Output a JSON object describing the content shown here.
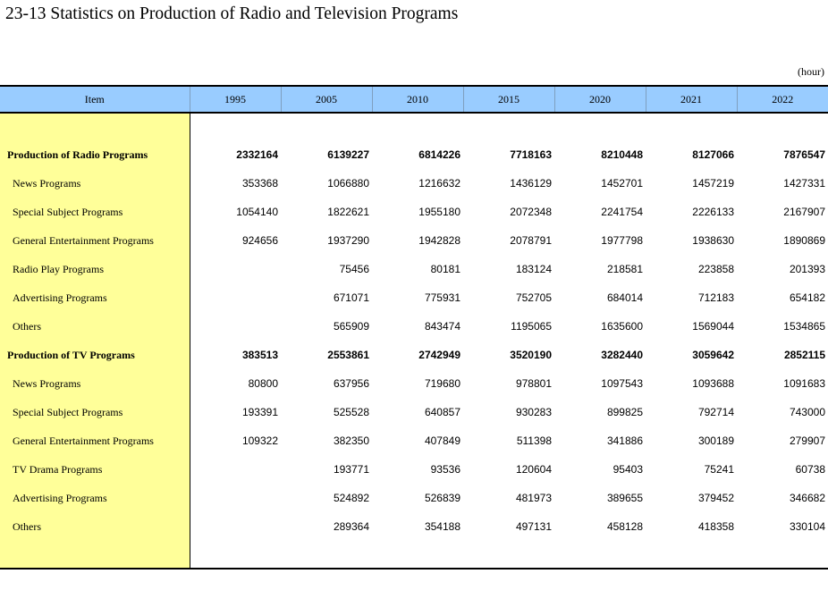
{
  "title": "23-13  Statistics on Production of Radio and Television Programs",
  "unit": "(hour)",
  "table": {
    "headers": [
      "Item",
      "1995",
      "2005",
      "2010",
      "2015",
      "2020",
      "2021",
      "2022"
    ],
    "rows": [
      {
        "item": "Production of Radio Programs",
        "bold": true,
        "values": [
          "2332164",
          "6139227",
          "6814226",
          "7718163",
          "8210448",
          "8127066",
          "7876547"
        ]
      },
      {
        "item": "News Programs",
        "bold": false,
        "values": [
          "353368",
          "1066880",
          "1216632",
          "1436129",
          "1452701",
          "1457219",
          "1427331"
        ]
      },
      {
        "item": "Special Subject Programs",
        "bold": false,
        "values": [
          "1054140",
          "1822621",
          "1955180",
          "2072348",
          "2241754",
          "2226133",
          "2167907"
        ]
      },
      {
        "item": "General Entertainment Programs",
        "bold": false,
        "values": [
          "924656",
          "1937290",
          "1942828",
          "2078791",
          "1977798",
          "1938630",
          "1890869"
        ]
      },
      {
        "item": "Radio Play Programs",
        "bold": false,
        "values": [
          "",
          "75456",
          "80181",
          "183124",
          "218581",
          "223858",
          "201393"
        ]
      },
      {
        "item": "Advertising Programs",
        "bold": false,
        "values": [
          "",
          "671071",
          "775931",
          "752705",
          "684014",
          "712183",
          "654182"
        ]
      },
      {
        "item": "Others",
        "bold": false,
        "values": [
          "",
          "565909",
          "843474",
          "1195065",
          "1635600",
          "1569044",
          "1534865"
        ]
      },
      {
        "item": "Production of TV Programs",
        "bold": true,
        "values": [
          "383513",
          "2553861",
          "2742949",
          "3520190",
          "3282440",
          "3059642",
          "2852115"
        ]
      },
      {
        "item": "News Programs",
        "bold": false,
        "values": [
          "80800",
          "637956",
          "719680",
          "978801",
          "1097543",
          "1093688",
          "1091683"
        ]
      },
      {
        "item": "Special Subject Programs",
        "bold": false,
        "values": [
          "193391",
          "525528",
          "640857",
          "930283",
          "899825",
          "792714",
          "743000"
        ]
      },
      {
        "item": "General Entertainment Programs",
        "bold": false,
        "values": [
          "109322",
          "382350",
          "407849",
          "511398",
          "341886",
          "300189",
          "279907"
        ]
      },
      {
        "item": "TV Drama Programs",
        "bold": false,
        "values": [
          "",
          "193771",
          "93536",
          "120604",
          "95403",
          "75241",
          "60738"
        ]
      },
      {
        "item": "Advertising Programs",
        "bold": false,
        "values": [
          "",
          "524892",
          "526839",
          "481973",
          "389655",
          "379452",
          "346682"
        ]
      },
      {
        "item": "Others",
        "bold": false,
        "values": [
          "",
          "289364",
          "354188",
          "497131",
          "458128",
          "418358",
          "330104"
        ]
      }
    ]
  }
}
